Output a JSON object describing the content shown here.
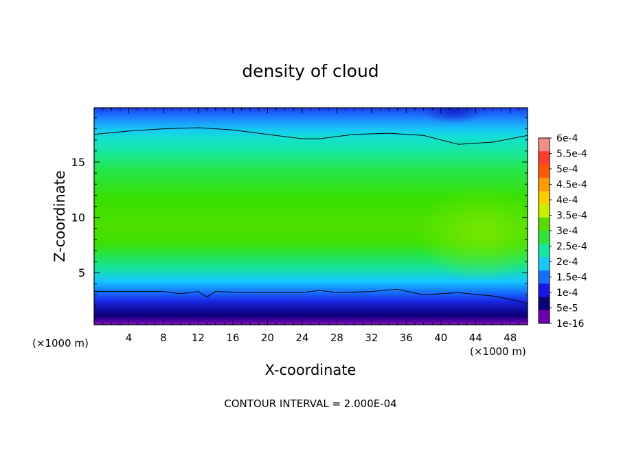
{
  "chart_data": {
    "type": "heatmap",
    "title": "density of cloud",
    "xlabel": "X-coordinate",
    "ylabel": "Z-coordinate",
    "x_unit_left": "(×1000 m)",
    "x_unit_right": "(×1000 m)",
    "xlim": [
      0,
      50
    ],
    "ylim": [
      0.3,
      19.9
    ],
    "x_ticks": [
      "4",
      "8",
      "12",
      "16",
      "20",
      "24",
      "28",
      "32",
      "36",
      "40",
      "44",
      "48"
    ],
    "y_ticks": [
      "5",
      "10",
      "15"
    ],
    "footer": "CONTOUR INTERVAL = 2.000E-04",
    "colorbar": {
      "labels": [
        "6e-4",
        "5.5e-4",
        "5e-4",
        "4.5e-4",
        "4e-4",
        "3.5e-4",
        "3e-4",
        "2.5e-4",
        "2e-4",
        "1.5e-4",
        "1e-4",
        "5e-5",
        "1e-16"
      ],
      "colors": [
        "#f48a8a",
        "#ff3b2a",
        "#ff5a00",
        "#ff9900",
        "#ffcc00",
        "#c8f000",
        "#58dc00",
        "#33e23a",
        "#14e89c",
        "#17c8ff",
        "#1670ff",
        "#1a14e6",
        "#0d007a",
        "#6a00b0"
      ]
    },
    "contour_levels": [
      0.0002
    ],
    "contour_upper": {
      "x": [
        0,
        4,
        8,
        12,
        16,
        20,
        24,
        26,
        30,
        34,
        38,
        42,
        46,
        50
      ],
      "z": [
        17.5,
        17.8,
        18.0,
        18.1,
        17.9,
        17.5,
        17.1,
        17.1,
        17.5,
        17.6,
        17.4,
        16.6,
        16.8,
        17.4
      ]
    },
    "contour_lower": {
      "x": [
        0,
        4,
        8,
        10,
        12,
        13,
        14,
        18,
        24,
        26,
        28,
        32,
        35,
        38,
        42,
        46,
        48,
        50
      ],
      "z": [
        3.3,
        3.3,
        3.3,
        3.1,
        3.3,
        2.8,
        3.3,
        3.2,
        3.2,
        3.4,
        3.2,
        3.3,
        3.5,
        3.0,
        3.2,
        2.9,
        2.6,
        2.2
      ]
    }
  }
}
